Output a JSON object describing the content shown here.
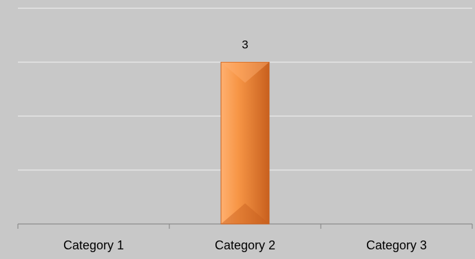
{
  "chart_data": {
    "type": "bar",
    "categories": [
      "Category 1",
      "Category 2",
      "Category 3"
    ],
    "values": [
      null,
      3,
      null
    ],
    "data_labels": [
      "",
      "3",
      ""
    ],
    "ylim": [
      0,
      4
    ],
    "grid": true,
    "legend": "none",
    "colors": {
      "background": "#c8c8c8",
      "gridline": "#e6e6e6",
      "axis": "#8c8c8c",
      "bar": "#f79646",
      "bar_highlight": "#ffb070",
      "bar_shadow": "#c8601e",
      "text": "#000000"
    }
  }
}
